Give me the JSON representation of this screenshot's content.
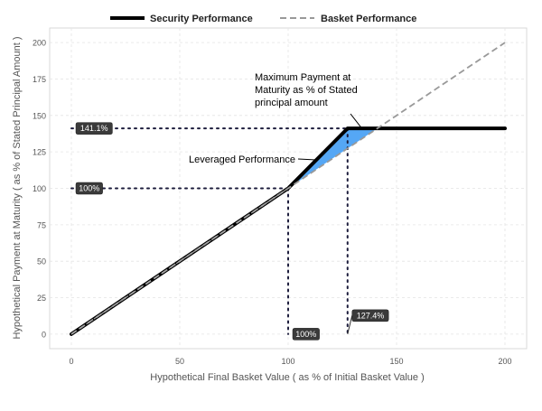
{
  "chart_data": {
    "type": "line",
    "xlabel": "Hypothetical Final Basket Value ( as % of Initial Basket Value )",
    "ylabel": "Hypothetical Payment at Maturity ( as % of Stated Principal Amount )",
    "xlim": [
      -10,
      210
    ],
    "ylim": [
      -10,
      210
    ],
    "x_ticks": [
      0,
      50,
      100,
      150,
      200
    ],
    "x_tick_labels": [
      "0",
      "50",
      "100",
      "150",
      "200"
    ],
    "y_ticks": [
      0,
      25,
      50,
      75,
      100,
      125,
      150,
      175,
      200
    ],
    "y_tick_labels": [
      "0",
      "25",
      "50",
      "75",
      "100",
      "125",
      "150",
      "175",
      "200"
    ],
    "grid": true,
    "legend_position": "top",
    "series": [
      {
        "name": "Security Performance",
        "style": "solid",
        "color": "#000000",
        "points": [
          [
            0,
            0
          ],
          [
            100,
            100
          ],
          [
            127.4,
            141.1
          ],
          [
            200,
            141.1
          ]
        ]
      },
      {
        "name": "Basket Performance",
        "style": "dashed",
        "color": "#999999",
        "points": [
          [
            0,
            0
          ],
          [
            200,
            200
          ]
        ]
      }
    ],
    "shaded_region": {
      "color": "#55a7f5",
      "points": [
        [
          100,
          100
        ],
        [
          127.4,
          141.1
        ],
        [
          141.1,
          141.1
        ]
      ]
    },
    "reference_lines": [
      {
        "from": [
          0,
          141.1
        ],
        "to": [
          127.4,
          141.1
        ]
      },
      {
        "from": [
          0,
          100
        ],
        "to": [
          100,
          100
        ]
      },
      {
        "from": [
          100,
          100
        ],
        "to": [
          100,
          0
        ]
      },
      {
        "from": [
          127.4,
          141.1
        ],
        "to": [
          127.4,
          0
        ]
      }
    ],
    "value_callouts": [
      {
        "label": "141.1%",
        "x": 0,
        "y": 141.1
      },
      {
        "label": "100%",
        "x": 0,
        "y": 100
      },
      {
        "label": "100%",
        "x": 100,
        "y": 0
      },
      {
        "label": "127.4%",
        "x": 127.4,
        "y": 0
      }
    ],
    "annotations": [
      {
        "lines": [
          "Maximum Payment at",
          "Maturity as % of Stated",
          "principal amount"
        ],
        "pointer_to": [
          134,
          141.1
        ]
      },
      {
        "lines": [
          "Leveraged Performance"
        ],
        "pointer_to": [
          113,
          118
        ]
      }
    ]
  }
}
